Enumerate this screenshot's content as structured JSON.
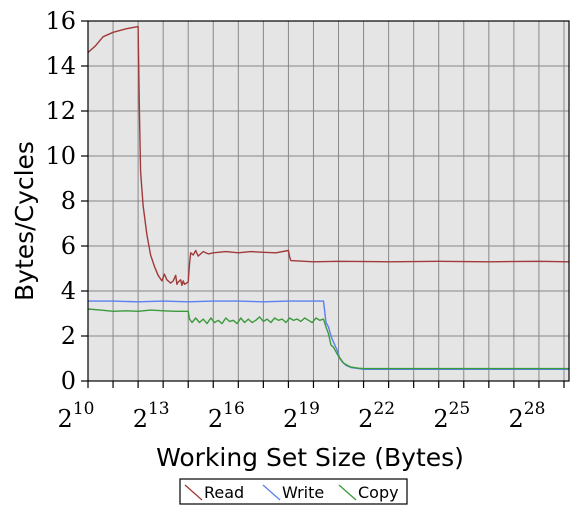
{
  "chart_data": {
    "type": "line",
    "xlabel": "Working Set Size (Bytes)",
    "ylabel": "Bytes/Cycles",
    "xscale": "log2",
    "xlim": [
      10,
      29.2
    ],
    "ylim": [
      0,
      16
    ],
    "grid": true,
    "legend_position": "bottom-center",
    "plot_background": "#e5e5e5",
    "grid_color": "#888888",
    "x_ticks": [
      {
        "exp": 10,
        "base": "2",
        "sup": "10"
      },
      {
        "exp": 13,
        "base": "2",
        "sup": "13"
      },
      {
        "exp": 16,
        "base": "2",
        "sup": "16"
      },
      {
        "exp": 19,
        "base": "2",
        "sup": "19"
      },
      {
        "exp": 22,
        "base": "2",
        "sup": "22"
      },
      {
        "exp": 25,
        "base": "2",
        "sup": "25"
      },
      {
        "exp": 28,
        "base": "2",
        "sup": "28"
      }
    ],
    "y_ticks": [
      "0",
      "2",
      "4",
      "6",
      "8",
      "10",
      "12",
      "14",
      "16"
    ],
    "series": [
      {
        "name": "Read",
        "color": "#a03a3a",
        "x": [
          10,
          10.3,
          10.6,
          11,
          11.5,
          12,
          12.05,
          12.1,
          12.2,
          12.35,
          12.5,
          12.65,
          12.8,
          12.95,
          13.05,
          13.15,
          13.3,
          13.4,
          13.5,
          13.55,
          13.6,
          13.7,
          13.75,
          13.8,
          13.85,
          14.0,
          14.05,
          14.1,
          14.2,
          14.3,
          14.4,
          14.6,
          14.8,
          15,
          15.5,
          16,
          16.5,
          17,
          17.5,
          18,
          18.05,
          18.1,
          19,
          20,
          22,
          24,
          26,
          28,
          29.2
        ],
        "y": [
          14.6,
          14.9,
          15.3,
          15.5,
          15.65,
          15.75,
          12,
          9.3,
          7.8,
          6.5,
          5.6,
          5.1,
          4.7,
          4.45,
          4.75,
          4.5,
          4.35,
          4.45,
          4.7,
          4.3,
          4.4,
          4.5,
          4.25,
          4.45,
          4.3,
          4.4,
          5.2,
          5.7,
          5.6,
          5.8,
          5.55,
          5.75,
          5.65,
          5.7,
          5.75,
          5.7,
          5.75,
          5.72,
          5.7,
          5.8,
          5.5,
          5.35,
          5.3,
          5.32,
          5.3,
          5.32,
          5.3,
          5.32,
          5.3
        ]
      },
      {
        "name": "Write",
        "color": "#5b7ff2",
        "x": [
          10,
          11,
          12,
          13,
          14,
          15,
          16,
          17,
          18,
          19,
          19.4,
          19.5,
          19.6,
          19.7,
          19.75,
          19.85,
          19.95,
          20.05,
          20.15,
          20.3,
          20.5,
          20.8,
          21,
          22,
          24,
          26,
          28,
          29.2
        ],
        "y": [
          3.55,
          3.55,
          3.52,
          3.55,
          3.52,
          3.55,
          3.55,
          3.52,
          3.55,
          3.55,
          3.55,
          2.6,
          2.4,
          2.0,
          1.85,
          1.6,
          1.35,
          1.0,
          0.85,
          0.7,
          0.6,
          0.55,
          0.52,
          0.52,
          0.52,
          0.52,
          0.52,
          0.52
        ]
      },
      {
        "name": "Copy",
        "color": "#3c9a3c",
        "x": [
          10,
          10.5,
          11,
          11.5,
          12,
          12.5,
          13,
          13.5,
          14,
          14.05,
          14.15,
          14.3,
          14.45,
          14.6,
          14.75,
          14.9,
          15.05,
          15.2,
          15.35,
          15.5,
          15.65,
          15.8,
          15.95,
          16.1,
          16.25,
          16.4,
          16.55,
          16.7,
          16.85,
          17.0,
          17.15,
          17.3,
          17.45,
          17.6,
          17.75,
          17.9,
          18.05,
          18.2,
          18.35,
          18.5,
          18.65,
          18.8,
          18.95,
          19.1,
          19.25,
          19.4,
          19.5,
          19.6,
          19.7,
          19.8,
          19.9,
          20.0,
          20.1,
          20.2,
          20.35,
          20.5,
          20.8,
          21,
          22,
          24,
          26,
          28,
          29.2
        ],
        "y": [
          3.2,
          3.15,
          3.1,
          3.12,
          3.1,
          3.15,
          3.12,
          3.1,
          3.1,
          2.75,
          2.6,
          2.8,
          2.6,
          2.75,
          2.55,
          2.8,
          2.6,
          2.7,
          2.55,
          2.8,
          2.65,
          2.7,
          2.55,
          2.8,
          2.6,
          2.75,
          2.6,
          2.7,
          2.85,
          2.65,
          2.75,
          2.6,
          2.8,
          2.7,
          2.75,
          2.6,
          2.8,
          2.7,
          2.75,
          2.65,
          2.8,
          2.7,
          2.6,
          2.8,
          2.7,
          2.75,
          2.4,
          2.1,
          1.6,
          1.5,
          1.3,
          1.1,
          0.95,
          0.8,
          0.7,
          0.62,
          0.57,
          0.55,
          0.55,
          0.55,
          0.55,
          0.55,
          0.55
        ]
      }
    ]
  }
}
